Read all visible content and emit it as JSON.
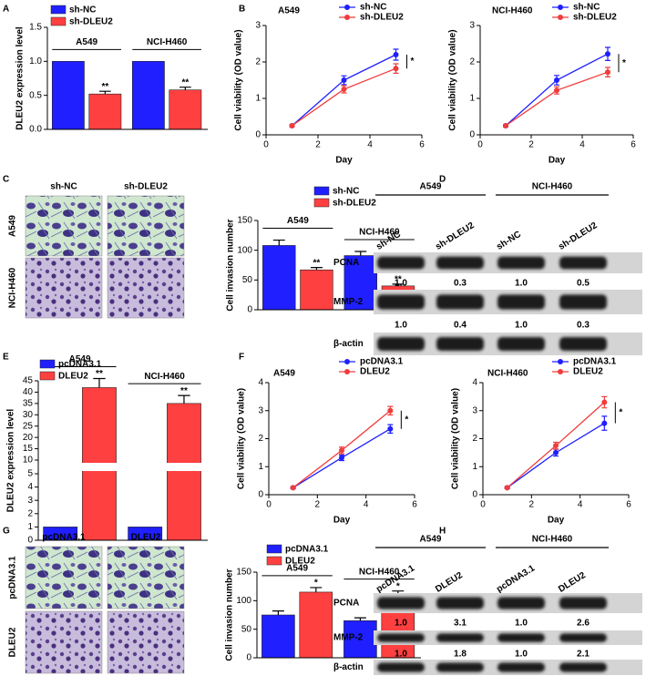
{
  "panel_labels": [
    "A",
    "B",
    "C",
    "D",
    "E",
    "F",
    "G",
    "H"
  ],
  "chart_data": [
    {
      "type": "bar",
      "ylabel": "DLEU2 expression level",
      "categories": [
        "A549",
        "NCI-H460"
      ],
      "series": [
        {
          "name": "sh-NC",
          "color": "#1f1fff",
          "values": [
            1.0,
            1.0
          ]
        },
        {
          "name": "sh-DLEU2",
          "color": "#ff4040",
          "values": [
            0.52,
            0.58
          ],
          "errors": [
            0.04,
            0.04
          ],
          "annotations": [
            "**",
            "**"
          ]
        }
      ],
      "ylim": [
        0,
        1.5
      ],
      "yticks": [
        {
          "value": 0,
          "label": "0.0"
        },
        {
          "value": 0.5,
          "label": "0.5"
        },
        {
          "value": 1,
          "label": "1.0"
        },
        {
          "value": 1.5,
          "label": "1.5"
        }
      ]
    },
    {
      "type": "line",
      "title": "A549",
      "xlabel": "Day",
      "ylabel": "Cell viability (OD value)",
      "x": [
        1,
        3,
        5
      ],
      "xlim": [
        0,
        6
      ],
      "xticks": [
        0,
        2,
        4,
        6
      ],
      "ylim": [
        0,
        3
      ],
      "yticks": [
        0,
        1,
        2,
        3
      ],
      "annotation": "*",
      "series": [
        {
          "name": "sh-NC",
          "color": "#1f1fff",
          "values": [
            0.25,
            1.5,
            2.2
          ],
          "errors": [
            0.03,
            0.12,
            0.15
          ]
        },
        {
          "name": "sh-DLEU2",
          "color": "#f03c3c",
          "values": [
            0.25,
            1.25,
            1.82
          ],
          "errors": [
            0.03,
            0.1,
            0.13
          ]
        }
      ]
    },
    {
      "type": "line",
      "title": "NCI-H460",
      "xlabel": "Day",
      "ylabel": "Cell viability (OD value)",
      "x": [
        1,
        3,
        5
      ],
      "xlim": [
        0,
        6
      ],
      "xticks": [
        0,
        2,
        4,
        6
      ],
      "ylim": [
        0,
        3
      ],
      "yticks": [
        0,
        1,
        2,
        3
      ],
      "annotation": "*",
      "series": [
        {
          "name": "sh-NC",
          "color": "#1f1fff",
          "values": [
            0.25,
            1.5,
            2.22
          ],
          "errors": [
            0.03,
            0.13,
            0.18
          ]
        },
        {
          "name": "sh-DLEU2",
          "color": "#f03c3c",
          "values": [
            0.25,
            1.22,
            1.72
          ],
          "errors": [
            0.03,
            0.1,
            0.13
          ]
        }
      ]
    },
    {
      "type": "bar",
      "ylabel": "Cell invasion number",
      "categories": [
        "A549",
        "NCI-H460"
      ],
      "series": [
        {
          "name": "sh-NC",
          "color": "#1f1fff",
          "values": [
            108,
            91
          ],
          "errors": [
            9,
            7
          ]
        },
        {
          "name": "sh-DLEU2",
          "color": "#ff4040",
          "values": [
            67,
            40
          ],
          "errors": [
            4,
            3
          ],
          "annotations": [
            "**",
            "**"
          ]
        }
      ],
      "ylim": [
        0,
        150
      ],
      "yticks": [
        0,
        50,
        100,
        150
      ]
    },
    {
      "type": "bar",
      "ylabel": "DLEU2 expression level",
      "categories": [
        "A549",
        "NCI-H460"
      ],
      "series": [
        {
          "name": "pcDNA3.1",
          "color": "#1f1fff",
          "values": [
            1,
            1
          ]
        },
        {
          "name": "DLEU2",
          "color": "#ff4040",
          "values": [
            42,
            35
          ],
          "errors": [
            4,
            3.5
          ],
          "annotations": [
            "**",
            "**"
          ]
        }
      ],
      "ylim": [
        0,
        45
      ],
      "ybreak": [
        5,
        10
      ],
      "yticks": [
        0,
        1,
        2,
        3,
        4,
        5,
        10,
        15,
        20,
        25,
        30,
        35,
        40,
        45
      ]
    },
    {
      "type": "line",
      "title": "A549",
      "xlabel": "Day",
      "ylabel": "Cell viability (OD value)",
      "x": [
        1,
        3,
        5
      ],
      "xlim": [
        0,
        6
      ],
      "xticks": [
        0,
        2,
        4,
        6
      ],
      "ylim": [
        0,
        4
      ],
      "yticks": [
        0,
        1,
        2,
        3,
        4
      ],
      "annotation": "*",
      "series": [
        {
          "name": "pcDNA3.1",
          "color": "#1f1fff",
          "values": [
            0.25,
            1.32,
            2.35
          ],
          "errors": [
            0.03,
            0.1,
            0.15
          ]
        },
        {
          "name": "DLEU2",
          "color": "#f03c3c",
          "values": [
            0.25,
            1.58,
            3.0
          ],
          "errors": [
            0.03,
            0.12,
            0.15
          ]
        }
      ]
    },
    {
      "type": "line",
      "title": "NCI-H460",
      "xlabel": "Day",
      "ylabel": "Cell viability (OD value)",
      "x": [
        1,
        3,
        5
      ],
      "xlim": [
        0,
        6
      ],
      "xticks": [
        0,
        2,
        4,
        6
      ],
      "ylim": [
        0,
        4
      ],
      "yticks": [
        0,
        1,
        2,
        3,
        4
      ],
      "annotation": "*",
      "series": [
        {
          "name": "pcDNA3.1",
          "color": "#1f1fff",
          "values": [
            0.25,
            1.5,
            2.55
          ],
          "errors": [
            0.03,
            0.12,
            0.25
          ]
        },
        {
          "name": "DLEU2",
          "color": "#f03c3c",
          "values": [
            0.25,
            1.75,
            3.3
          ],
          "errors": [
            0.03,
            0.12,
            0.2
          ]
        }
      ]
    },
    {
      "type": "bar",
      "ylabel": "Cell invasion number",
      "categories": [
        "A549",
        "NCI-H460"
      ],
      "series": [
        {
          "name": "pcDNA3.1",
          "color": "#1f1fff",
          "values": [
            75,
            65
          ],
          "errors": [
            7,
            5
          ]
        },
        {
          "name": "DLEU2",
          "color": "#ff4040",
          "values": [
            115,
            108
          ],
          "errors": [
            8,
            9
          ],
          "annotations": [
            "*",
            "*"
          ]
        }
      ],
      "ylim": [
        0,
        150
      ],
      "yticks": [
        0,
        50,
        100,
        150
      ]
    }
  ],
  "micrographs": [
    {
      "columns": [
        "sh-NC",
        "sh-DLEU2"
      ],
      "rows": [
        "A549",
        "NCI-H460"
      ]
    },
    {
      "columns": [
        "pcDNA3.1",
        "DLEU2"
      ],
      "rows": [
        "pcDNA3.1",
        "DLEU2"
      ]
    }
  ],
  "blots": [
    {
      "groups": [
        "A549",
        "NCI-H460"
      ],
      "lanes": [
        "sh-NC",
        "sh-DLEU2",
        "sh-NC",
        "sh-DLEU2"
      ],
      "rows": [
        {
          "name": "PCNA",
          "quant": [
            "1.0",
            "0.3",
            "1.0",
            "0.5"
          ]
        },
        {
          "name": "MMP-2",
          "quant": [
            "1.0",
            "0.4",
            "1.0",
            "0.3"
          ]
        },
        {
          "name": "β-actin"
        }
      ]
    },
    {
      "groups": [
        "A549",
        "NCI-H460"
      ],
      "lanes": [
        "pcDNA3.1",
        "DLEU2",
        "pcDNA3.1",
        "DLEU2"
      ],
      "rows": [
        {
          "name": "PCNA",
          "quant": [
            "1.0",
            "3.1",
            "1.0",
            "2.6"
          ]
        },
        {
          "name": "MMP-2",
          "quant": [
            "1.0",
            "1.8",
            "1.0",
            "2.1"
          ]
        },
        {
          "name": "β-actin"
        }
      ]
    }
  ]
}
